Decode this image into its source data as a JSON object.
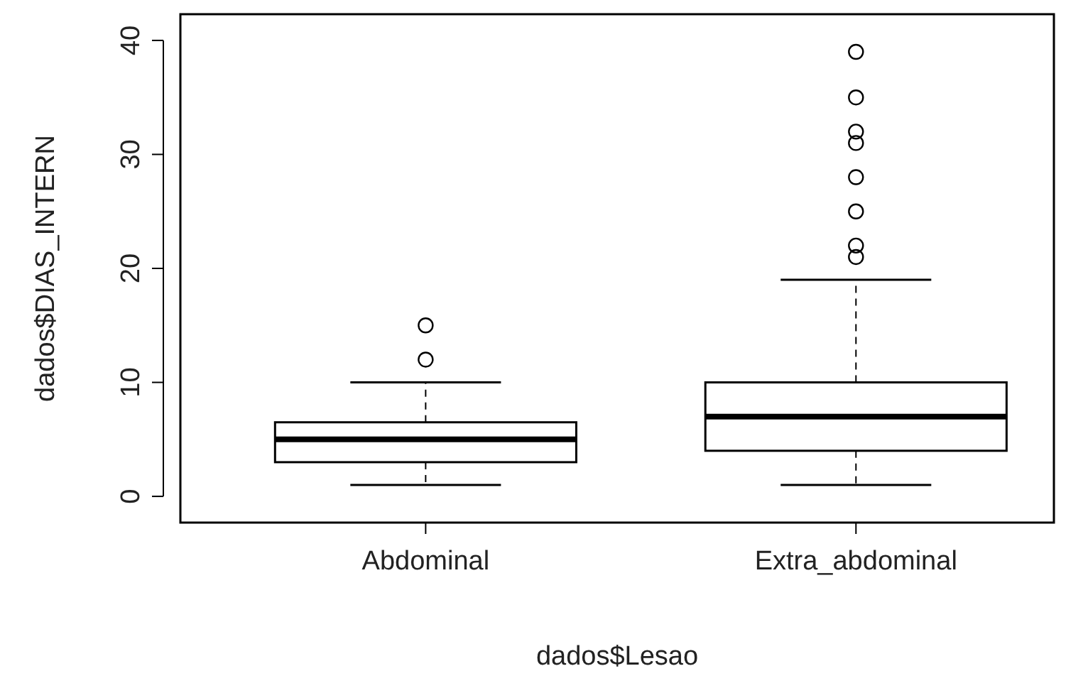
{
  "chart_data": {
    "type": "box",
    "xlabel": "dados$Lesao",
    "ylabel": "dados$DIAS_INTERN",
    "categories": [
      "Abdominal",
      "Extra_abdominal"
    ],
    "boxes": [
      {
        "low": 1,
        "q1": 3,
        "median": 5,
        "q3": 6.5,
        "high": 10,
        "outliers": [
          12,
          15
        ]
      },
      {
        "low": 1,
        "q1": 4,
        "median": 7,
        "q3": 10,
        "high": 19,
        "outliers": [
          21,
          22,
          25,
          28,
          31,
          32,
          35,
          39
        ]
      }
    ],
    "ylim": [
      -2.3,
      42.3
    ],
    "yticks": [
      0,
      10,
      20,
      30,
      40
    ],
    "grid": false
  }
}
